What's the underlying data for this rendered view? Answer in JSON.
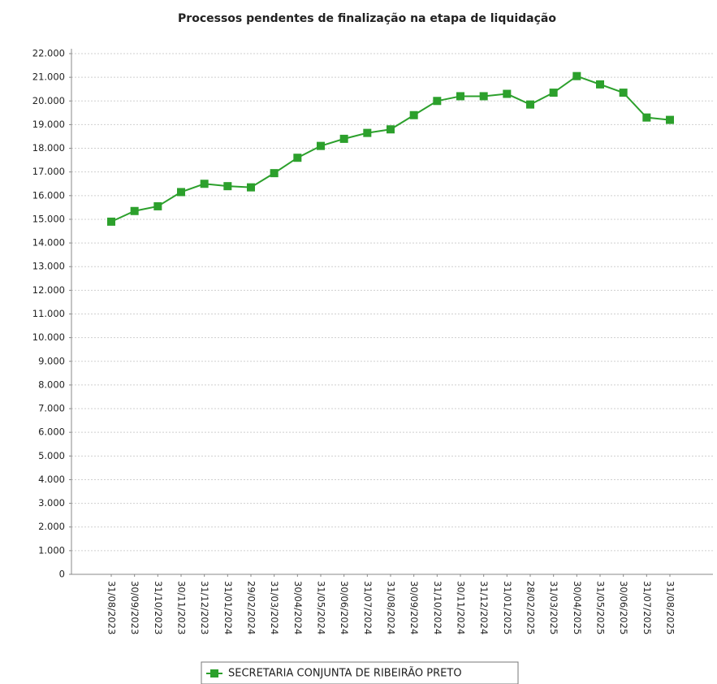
{
  "chart_data": {
    "type": "line",
    "title": "Processos pendentes de finalização na etapa de liquidação",
    "categories": [
      "31/08/2023",
      "30/09/2023",
      "31/10/2023",
      "30/11/2023",
      "31/12/2023",
      "31/01/2024",
      "29/02/2024",
      "31/03/2024",
      "30/04/2024",
      "31/05/2024",
      "30/06/2024",
      "31/07/2024",
      "31/08/2024",
      "30/09/2024",
      "31/10/2024",
      "30/11/2024",
      "31/12/2024",
      "31/01/2025",
      "28/02/2025",
      "31/03/2025",
      "30/04/2025",
      "31/05/2025",
      "30/06/2025",
      "31/07/2025",
      "31/08/2025"
    ],
    "series": [
      {
        "name": "SECRETARIA CONJUNTA DE RIBEIRÃO PRETO",
        "color": "#2ca02c",
        "values": [
          14900,
          15350,
          15550,
          16150,
          16500,
          16400,
          16350,
          16950,
          17600,
          18100,
          18400,
          18650,
          18800,
          19400,
          20000,
          20200,
          20200,
          20300,
          19850,
          20350,
          21050,
          20700,
          20350,
          19300,
          19200
        ]
      }
    ],
    "ylim": [
      0,
      22000
    ],
    "yticks": [
      0,
      {
        "value": 1000,
        "label": "1.000"
      },
      {
        "value": 2000,
        "label": "2.000"
      },
      {
        "value": 3000,
        "label": "3.000"
      },
      {
        "value": 4000,
        "label": "4.000"
      },
      {
        "value": 5000,
        "label": "5.000"
      },
      {
        "value": 6000,
        "label": "6.000"
      },
      {
        "value": 7000,
        "label": "7.000"
      },
      {
        "value": 8000,
        "label": "8.000"
      },
      {
        "value": 9000,
        "label": "9.000"
      },
      {
        "value": 10000,
        "label": "10.000"
      },
      {
        "value": 11000,
        "label": "11.000"
      },
      {
        "value": 12000,
        "label": "12.000"
      },
      {
        "value": 13000,
        "label": "13.000"
      },
      {
        "value": 14000,
        "label": "14.000"
      },
      {
        "value": 15000,
        "label": "15.000"
      },
      {
        "value": 16000,
        "label": "16.000"
      },
      {
        "value": 17000,
        "label": "17.000"
      },
      {
        "value": 18000,
        "label": "18.000"
      },
      {
        "value": 19000,
        "label": "19.000"
      },
      {
        "value": 20000,
        "label": "20.000"
      },
      {
        "value": 21000,
        "label": "21.000"
      },
      {
        "value": 22000,
        "label": "22.000"
      }
    ],
    "grid": true
  }
}
